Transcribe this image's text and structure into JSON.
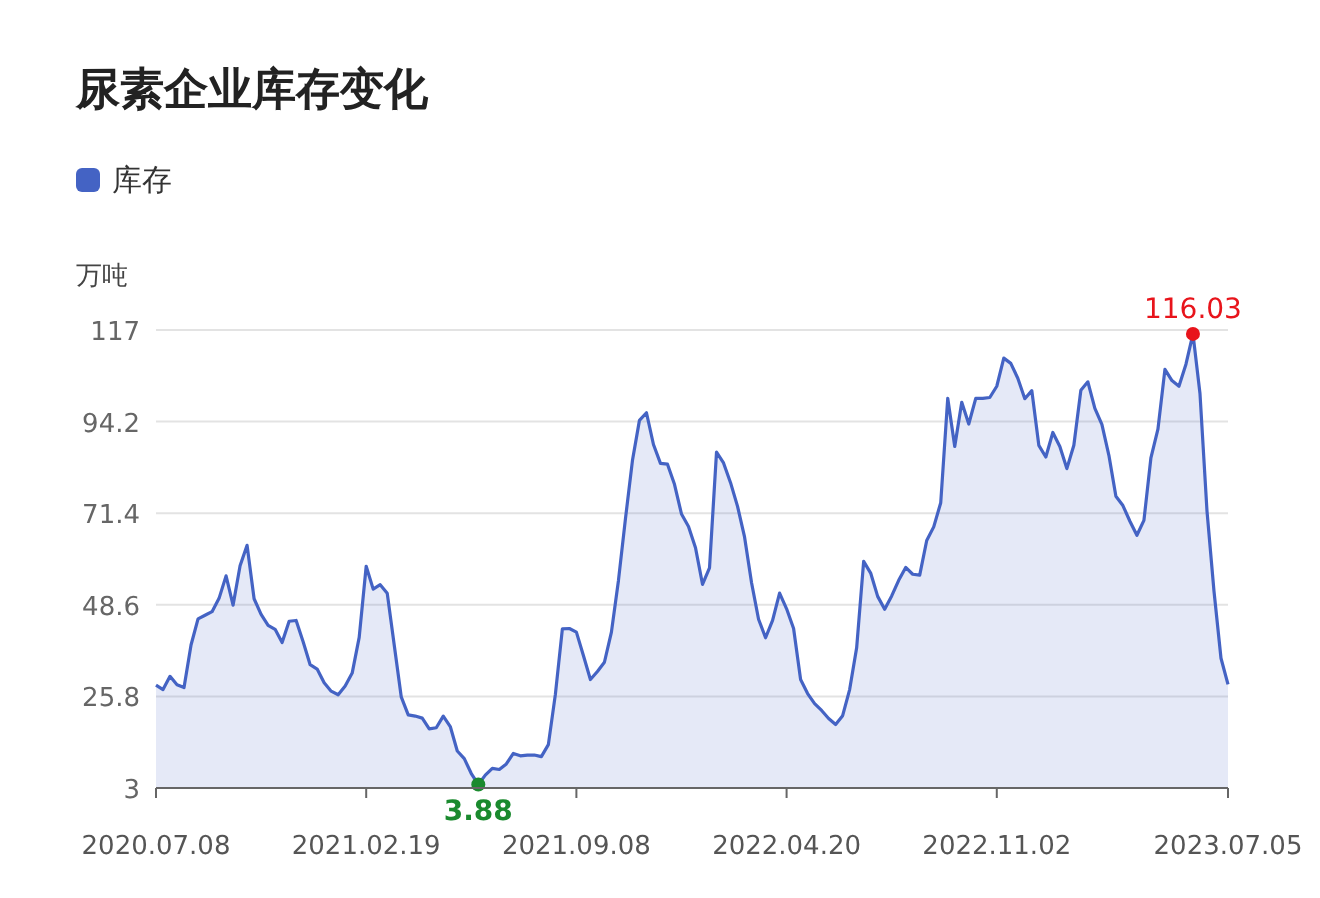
{
  "chart_data": {
    "type": "area",
    "title": "尿素企业库存变化",
    "ylabel": "万吨",
    "legend": "top left",
    "grid": "y",
    "marker": "none",
    "ylim": [
      3,
      117
    ],
    "yticks": [
      3,
      25.8,
      48.6,
      71.4,
      94.2,
      117
    ],
    "categories": [
      "2020.07.08",
      null,
      null,
      null,
      null,
      null,
      null,
      null,
      null,
      null,
      null,
      null,
      null,
      null,
      null,
      null,
      null,
      null,
      null,
      null,
      null,
      null,
      null,
      null,
      null,
      null,
      null,
      null,
      null,
      null,
      "2021.02.19",
      null,
      null,
      null,
      null,
      null,
      null,
      null,
      null,
      null,
      null,
      null,
      null,
      null,
      null,
      null,
      null,
      null,
      null,
      null,
      null,
      null,
      null,
      null,
      null,
      null,
      null,
      null,
      null,
      null,
      "2021.09.08",
      null,
      null,
      null,
      null,
      null,
      null,
      null,
      null,
      null,
      null,
      null,
      null,
      null,
      null,
      null,
      null,
      null,
      null,
      null,
      null,
      null,
      null,
      null,
      null,
      null,
      null,
      null,
      null,
      null,
      "2022.04.20",
      null,
      null,
      null,
      null,
      null,
      null,
      null,
      null,
      null,
      null,
      null,
      null,
      null,
      null,
      null,
      null,
      null,
      null,
      null,
      null,
      null,
      null,
      null,
      null,
      null,
      null,
      null,
      null,
      null,
      "2022.11.02",
      null,
      null,
      null,
      null,
      null,
      null,
      null,
      null,
      null,
      null,
      null,
      null,
      null,
      null,
      null,
      null,
      null,
      null,
      null,
      null,
      null,
      null,
      null,
      null,
      null,
      null,
      null,
      null,
      null,
      null,
      null,
      null,
      "2023.07.05"
    ],
    "series": [
      {
        "name": "库存",
        "color": "#4463c4",
        "values": [
          28.6,
          27.5,
          30.8,
          28.7,
          28,
          38.6,
          45.1,
          46,
          46.9,
          50.2,
          55.8,
          48.5,
          58.3,
          63.4,
          50.1,
          46.2,
          43.5,
          42.5,
          39.2,
          44.5,
          44.7,
          39.4,
          33.7,
          32.6,
          29.2,
          27.1,
          26.2,
          28.4,
          31.6,
          40.5,
          58.2,
          52.5,
          53.6,
          51.5,
          38.6,
          25.7,
          21.2,
          20.9,
          20.4,
          17.7,
          18,
          20.9,
          18.3,
          12.2,
          10.3,
          6.6,
          3.88,
          6.2,
          7.9,
          7.6,
          9,
          11.6,
          11,
          11.2,
          11.2,
          10.8,
          13.8,
          26.3,
          42.6,
          42.7,
          41.8,
          36,
          30,
          32,
          34.3,
          41.8,
          54.6,
          70,
          84.5,
          94.5,
          96.4,
          88.5,
          83.8,
          83.6,
          78.6,
          71.2,
          68.1,
          62.8,
          53.7,
          57.8,
          86.6,
          83.9,
          79,
          73.1,
          65.5,
          54.1,
          45,
          40.4,
          44.7,
          51.5,
          47.6,
          42.7,
          30,
          26.5,
          24,
          22.3,
          20.3,
          18.8,
          21,
          27.5,
          37.9,
          59.4,
          56.5,
          50.7,
          47.5,
          50.8,
          54.7,
          57.9,
          56.2,
          56,
          64.6,
          68,
          74,
          100,
          88,
          99,
          93.6,
          100,
          100,
          100.2,
          103,
          110,
          108.7,
          105,
          99.9,
          101.9,
          88.3,
          85.4,
          91.5,
          88,
          82.5,
          88.3,
          102,
          104.1,
          97.5,
          93.5,
          85.8,
          75.6,
          73.3,
          69.4,
          65.9,
          69.6,
          85.2,
          92.3,
          107.2,
          104.4,
          103,
          108.5,
          116.03,
          101.2,
          72,
          52,
          35.3,
          28.8
        ],
        "value_labels": [
          null,
          null,
          null,
          null,
          null,
          null,
          null,
          null,
          null,
          null,
          null,
          null,
          null,
          null,
          null,
          null,
          null,
          null,
          null,
          null,
          null,
          null,
          null,
          null,
          null,
          null,
          null,
          null,
          null,
          null,
          null,
          null,
          null,
          null,
          null,
          null,
          null,
          null,
          null,
          null,
          null,
          null,
          null,
          null,
          null,
          null,
          "3.88",
          null,
          null,
          null,
          null,
          null,
          null,
          null,
          null,
          null,
          null,
          null,
          null,
          null,
          null,
          null,
          null,
          null,
          null,
          null,
          null,
          null,
          null,
          null,
          null,
          null,
          null,
          null,
          null,
          null,
          null,
          null,
          null,
          null,
          null,
          null,
          null,
          null,
          null,
          null,
          null,
          null,
          null,
          null,
          null,
          null,
          null,
          null,
          null,
          null,
          null,
          null,
          null,
          null,
          null,
          null,
          null,
          null,
          null,
          null,
          null,
          null,
          null,
          null,
          null,
          null,
          null,
          null,
          null,
          null,
          null,
          null,
          null,
          null,
          null,
          null,
          null,
          null,
          null,
          null,
          null,
          null,
          null,
          null,
          null,
          null,
          null,
          null,
          null,
          null,
          null,
          null,
          null,
          null,
          null,
          null,
          null,
          null,
          null,
          null,
          null,
          null,
          "116.03",
          null,
          null,
          null,
          null,
          null
        ]
      }
    ]
  }
}
